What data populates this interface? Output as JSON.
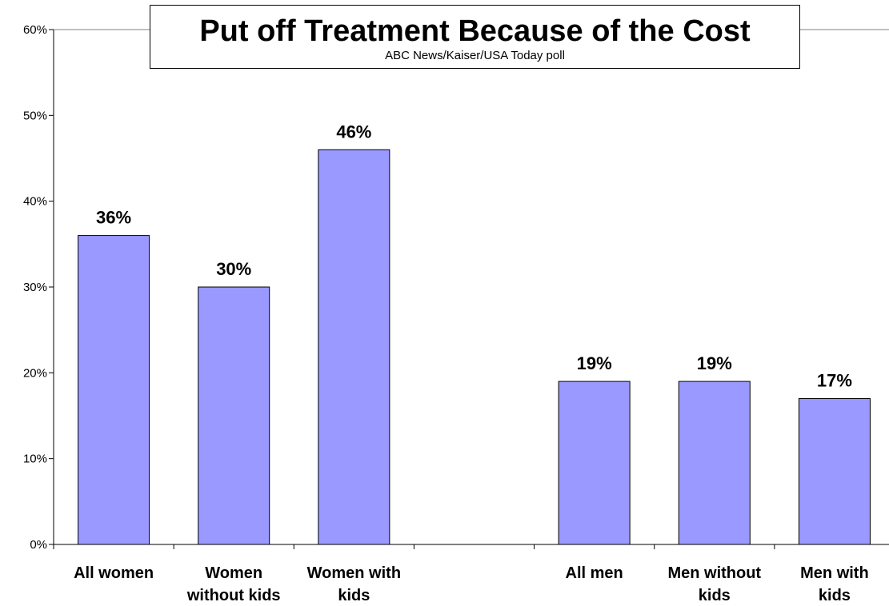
{
  "chart_data": {
    "type": "bar",
    "title": "Put off Treatment Because of the Cost",
    "subtitle": "ABC News/Kaiser/USA Today poll",
    "categories": [
      [
        "All women"
      ],
      [
        "Women",
        "without kids"
      ],
      [
        "Women with",
        "kids"
      ],
      [
        ""
      ],
      [
        "All men"
      ],
      [
        "Men without",
        "kids"
      ],
      [
        "Men with",
        "kids"
      ]
    ],
    "values": [
      36,
      30,
      46,
      null,
      19,
      19,
      17
    ],
    "data_labels": [
      "36%",
      "30%",
      "46%",
      "",
      "19%",
      "19%",
      "17%"
    ],
    "ylim": [
      0,
      60
    ],
    "yticks": [
      0,
      10,
      20,
      30,
      40,
      50,
      60
    ],
    "ytick_labels": [
      "0%",
      "10%",
      "20%",
      "30%",
      "40%",
      "50%",
      "60%"
    ],
    "grid": false,
    "legend": "none",
    "colors": {
      "bar_fill": "#9999FF",
      "bar_stroke": "#000000",
      "axis": "#000000"
    }
  }
}
